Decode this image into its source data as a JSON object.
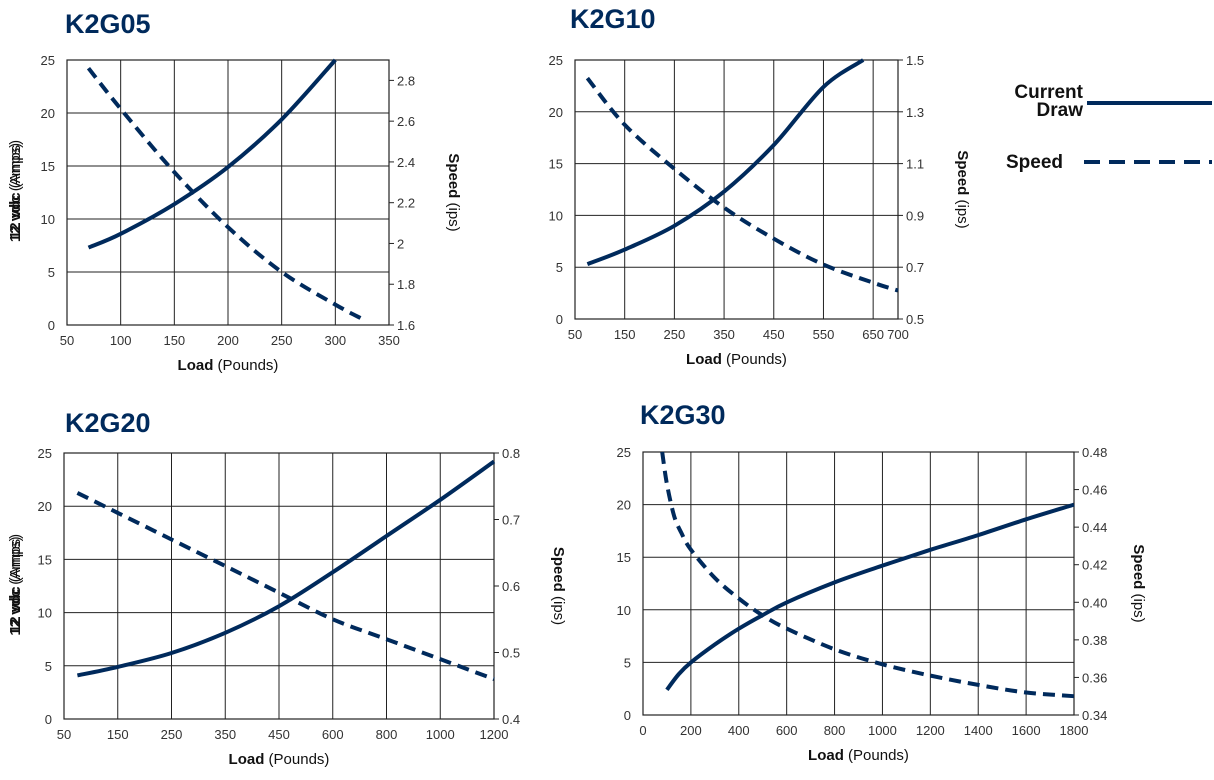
{
  "colors": {
    "series": "#002a5c",
    "grid": "#222222"
  },
  "legend": {
    "items": [
      {
        "label_lines": [
          "Current",
          "Draw"
        ],
        "style": "solid"
      },
      {
        "label_lines": [
          "Speed"
        ],
        "style": "dashed"
      }
    ]
  },
  "chart_data": [
    {
      "type": "line",
      "title": "K2G05",
      "xlabel": {
        "bold": "Load",
        "normal": " (Pounds)"
      },
      "ylabel": {
        "bold": "12 vdc",
        "normal": " (Amps)"
      },
      "y2label": {
        "bold": "Speed",
        "normal": " (ips)"
      },
      "xlim": [
        50,
        350
      ],
      "x_ticks": [
        50,
        100,
        150,
        200,
        250,
        300,
        350
      ],
      "ylim": [
        0,
        25
      ],
      "y_ticks": [
        0,
        5,
        10,
        15,
        20,
        25
      ],
      "y2lim": [
        1.6,
        2.9
      ],
      "y2_ticks": [
        "1.6",
        "1.8",
        "2",
        "2.2",
        "2.4",
        "2.6",
        "2.8"
      ],
      "series": [
        {
          "axis": "left",
          "style": "solid",
          "x": [
            70,
            100,
            150,
            200,
            250,
            300
          ],
          "values": [
            7.3,
            8.6,
            11.4,
            14.9,
            19.4,
            25.0
          ]
        },
        {
          "axis": "right",
          "style": "dashed",
          "x": [
            70,
            100,
            150,
            200,
            250,
            300,
            325
          ],
          "values": [
            2.86,
            2.66,
            2.35,
            2.08,
            1.86,
            1.7,
            1.63
          ]
        }
      ]
    },
    {
      "type": "line",
      "title": "K2G10",
      "xlabel": {
        "bold": "Load",
        "normal": " (Pounds)"
      },
      "ylabel": {
        "bold": "12 vdc",
        "normal": " (Amps)"
      },
      "y2label": {
        "bold": "Speed",
        "normal": " (ips)"
      },
      "xlim": [
        50,
        700
      ],
      "x_ticks": [
        50,
        150,
        250,
        350,
        450,
        550,
        650,
        700
      ],
      "ylim": [
        0,
        25
      ],
      "y_ticks": [
        0,
        5,
        10,
        15,
        20,
        25
      ],
      "y2lim": [
        0.5,
        1.5
      ],
      "y2_ticks": [
        "0.5",
        "0.7",
        "0.9",
        "1.1",
        "1.3",
        "1.5"
      ],
      "series": [
        {
          "axis": "left",
          "style": "solid",
          "x": [
            75,
            150,
            250,
            350,
            450,
            550,
            630
          ],
          "values": [
            5.3,
            6.7,
            9.0,
            12.3,
            16.8,
            22.4,
            25.0
          ]
        },
        {
          "axis": "right",
          "style": "dashed",
          "x": [
            75,
            150,
            250,
            350,
            450,
            550,
            650,
            700
          ],
          "values": [
            1.43,
            1.25,
            1.08,
            0.93,
            0.81,
            0.71,
            0.64,
            0.61
          ]
        }
      ]
    },
    {
      "type": "line",
      "title": "K2G20",
      "xlabel": {
        "bold": "Load",
        "normal": " (Pounds)"
      },
      "ylabel": {
        "bold": "12 vdc",
        "normal": " (Amps)"
      },
      "y2label": {
        "bold": "Speed",
        "normal": " (ips)"
      },
      "x_ticks": [
        50,
        150,
        250,
        350,
        450,
        600,
        800,
        1000,
        1200
      ],
      "ylim": [
        0,
        25
      ],
      "y_ticks": [
        0,
        5,
        10,
        15,
        20,
        25
      ],
      "y2lim": [
        0.4,
        0.8
      ],
      "y2_ticks": [
        "0.4",
        "0.5",
        "0.6",
        "0.7",
        "0.8"
      ],
      "series": [
        {
          "axis": "left",
          "style": "solid",
          "x": [
            75,
            150,
            250,
            350,
            450,
            600,
            800,
            1000,
            1200
          ],
          "values": [
            4.1,
            4.9,
            6.2,
            8.1,
            10.6,
            13.8,
            17.2,
            20.6,
            24.2
          ]
        },
        {
          "axis": "right",
          "style": "dashed",
          "x": [
            75,
            150,
            250,
            350,
            450,
            600,
            800,
            1000,
            1200
          ],
          "values": [
            0.74,
            0.71,
            0.67,
            0.63,
            0.59,
            0.55,
            0.52,
            0.49,
            0.46
          ]
        }
      ]
    },
    {
      "type": "line",
      "title": "K2G30",
      "xlabel": {
        "bold": "Load",
        "normal": " (Pounds)"
      },
      "ylabel": {
        "bold": "12 vdc",
        "normal": " (Amps)"
      },
      "y2label": {
        "bold": "Speed",
        "normal": " (ips)"
      },
      "xlim": [
        0,
        1800
      ],
      "x_ticks": [
        0,
        200,
        400,
        600,
        800,
        1000,
        1200,
        1400,
        1600,
        1800
      ],
      "ylim": [
        0,
        25
      ],
      "y_ticks": [
        0,
        5,
        10,
        15,
        20,
        25
      ],
      "y2lim": [
        0.34,
        0.48
      ],
      "y2_ticks": [
        "0.34",
        "0.36",
        "0.38",
        "0.40",
        "0.42",
        "0.44",
        "0.46",
        "0.48"
      ],
      "series": [
        {
          "axis": "left",
          "style": "solid",
          "x": [
            100,
            150,
            200,
            300,
            400,
            500,
            600,
            800,
            1000,
            1200,
            1400,
            1600,
            1800
          ],
          "values": [
            2.4,
            3.9,
            5.0,
            6.7,
            8.2,
            9.5,
            10.7,
            12.6,
            14.2,
            15.7,
            17.1,
            18.6,
            20.0
          ]
        },
        {
          "axis": "right",
          "style": "dashed",
          "x": [
            80,
            100,
            130,
            160,
            200,
            300,
            400,
            500,
            600,
            800,
            1000,
            1200,
            1400,
            1600,
            1800
          ],
          "values": [
            0.48,
            0.463,
            0.446,
            0.437,
            0.428,
            0.413,
            0.402,
            0.393,
            0.386,
            0.375,
            0.367,
            0.361,
            0.356,
            0.352,
            0.35
          ]
        }
      ]
    }
  ]
}
